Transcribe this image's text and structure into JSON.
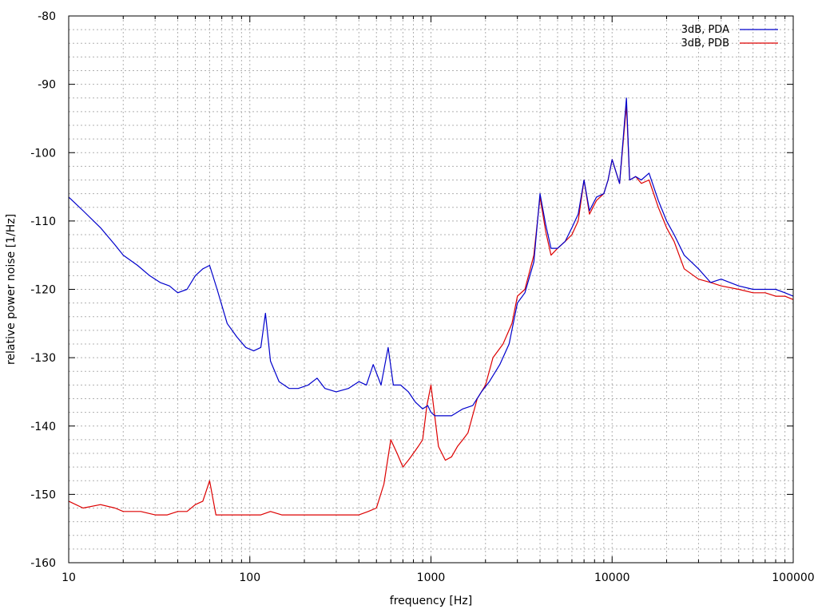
{
  "chart_data": {
    "type": "line",
    "xlabel": "frequency [Hz]",
    "ylabel": "relative power noise [1/Hz]",
    "x_scale": "log",
    "xlim": [
      10,
      100000
    ],
    "ylim": [
      -160,
      -80
    ],
    "grid": true,
    "legend_position": "top-right",
    "x_ticks": [
      10,
      100,
      1000,
      10000,
      100000
    ],
    "x_tick_labels": [
      "10",
      "100",
      "1000",
      "10000",
      "100000"
    ],
    "y_ticks": [
      -160,
      -150,
      -140,
      -130,
      -120,
      -110,
      -100,
      -90,
      -80
    ],
    "y_tick_labels": [
      "-160",
      "-150",
      "-140",
      "-130",
      "-120",
      "-110",
      "-100",
      "-90",
      "-80"
    ],
    "series": [
      {
        "name": "3dB, PDA",
        "color": "#0000cc",
        "x": [
          10,
          12,
          15,
          18,
          20,
          24,
          28,
          32,
          36,
          40,
          45,
          50,
          55,
          60,
          66,
          75,
          85,
          95,
          105,
          115,
          122,
          130,
          145,
          165,
          185,
          210,
          235,
          260,
          300,
          350,
          400,
          440,
          480,
          530,
          580,
          620,
          680,
          750,
          820,
          900,
          960,
          1000,
          1050,
          1150,
          1300,
          1500,
          1700,
          1900,
          2100,
          2400,
          2700,
          3000,
          3300,
          3700,
          4000,
          4300,
          4600,
          5000,
          5500,
          6000,
          6500,
          7000,
          7500,
          8200,
          9000,
          9500,
          10000,
          11000,
          12000,
          12500,
          13500,
          14500,
          16000,
          18000,
          20000,
          22000,
          25000,
          30000,
          35000,
          40000,
          50000,
          60000,
          70000,
          80000,
          90000,
          100000
        ],
        "values": [
          -106.5,
          -108.5,
          -111,
          -113.5,
          -115,
          -116.5,
          -118,
          -119,
          -119.5,
          -120.5,
          -120,
          -118,
          -117,
          -116.5,
          -120,
          -125,
          -127,
          -128.5,
          -129,
          -128.5,
          -123.5,
          -130.5,
          -133.5,
          -134.5,
          -134.5,
          -134,
          -133,
          -134.5,
          -135,
          -134.5,
          -133.5,
          -134,
          -131,
          -134,
          -128.5,
          -134,
          -134,
          -135,
          -136.5,
          -137.5,
          -137,
          -138,
          -138.5,
          -138.5,
          -138.5,
          -137.5,
          -137,
          -135,
          -133.5,
          -131,
          -128,
          -122,
          -120.5,
          -116,
          -106,
          -110.5,
          -114,
          -114,
          -113,
          -111,
          -109,
          -104,
          -108.5,
          -106.5,
          -106,
          -104,
          -101,
          -104.5,
          -92,
          -104,
          -103.5,
          -104,
          -103,
          -107,
          -110,
          -112,
          -115,
          -117,
          -119,
          -118.5,
          -119.5,
          -120,
          -120,
          -120,
          -120.5,
          -121
        ]
      },
      {
        "name": "3dB, PDB",
        "color": "#dd0000",
        "x": [
          10,
          12,
          15,
          18,
          20,
          22,
          25,
          30,
          35,
          40,
          45,
          50,
          55,
          60,
          65,
          72,
          80,
          90,
          100,
          115,
          130,
          150,
          180,
          210,
          250,
          300,
          350,
          400,
          450,
          500,
          550,
          600,
          650,
          700,
          750,
          800,
          850,
          900,
          950,
          1000,
          1100,
          1200,
          1300,
          1400,
          1500,
          1600,
          1800,
          2000,
          2200,
          2500,
          2800,
          3000,
          3300,
          3700,
          4000,
          4300,
          4600,
          5000,
          5500,
          6000,
          6500,
          7000,
          7500,
          8200,
          9000,
          9500,
          10000,
          11000,
          12000,
          12500,
          13500,
          14500,
          16000,
          18000,
          20000,
          22000,
          25000,
          30000,
          35000,
          40000,
          50000,
          60000,
          70000,
          80000,
          90000,
          100000
        ],
        "values": [
          -151,
          -152,
          -151.5,
          -152,
          -152.5,
          -152.5,
          -152.5,
          -153,
          -153,
          -152.5,
          -152.5,
          -151.5,
          -151,
          -148,
          -153,
          -153,
          -153,
          -153,
          -153,
          -153,
          -152.5,
          -153,
          -153,
          -153,
          -153,
          -153,
          -153,
          -153,
          -152.5,
          -152,
          -148.5,
          -142,
          -144,
          -146,
          -145,
          -144,
          -143,
          -142,
          -137,
          -134,
          -143,
          -145,
          -144.5,
          -143,
          -142,
          -141,
          -136,
          -134,
          -130,
          -128,
          -125,
          -121,
          -120,
          -115,
          -106.5,
          -111.5,
          -115,
          -114,
          -113,
          -112,
          -110,
          -104,
          -109,
          -107,
          -106,
          -104,
          -101,
          -104.5,
          -93,
          -104,
          -103.5,
          -104.5,
          -104,
          -108,
          -111,
          -113,
          -117,
          -118.5,
          -119,
          -119.5,
          -120,
          -120.5,
          -120.5,
          -121,
          -121,
          -121.5
        ]
      }
    ]
  }
}
